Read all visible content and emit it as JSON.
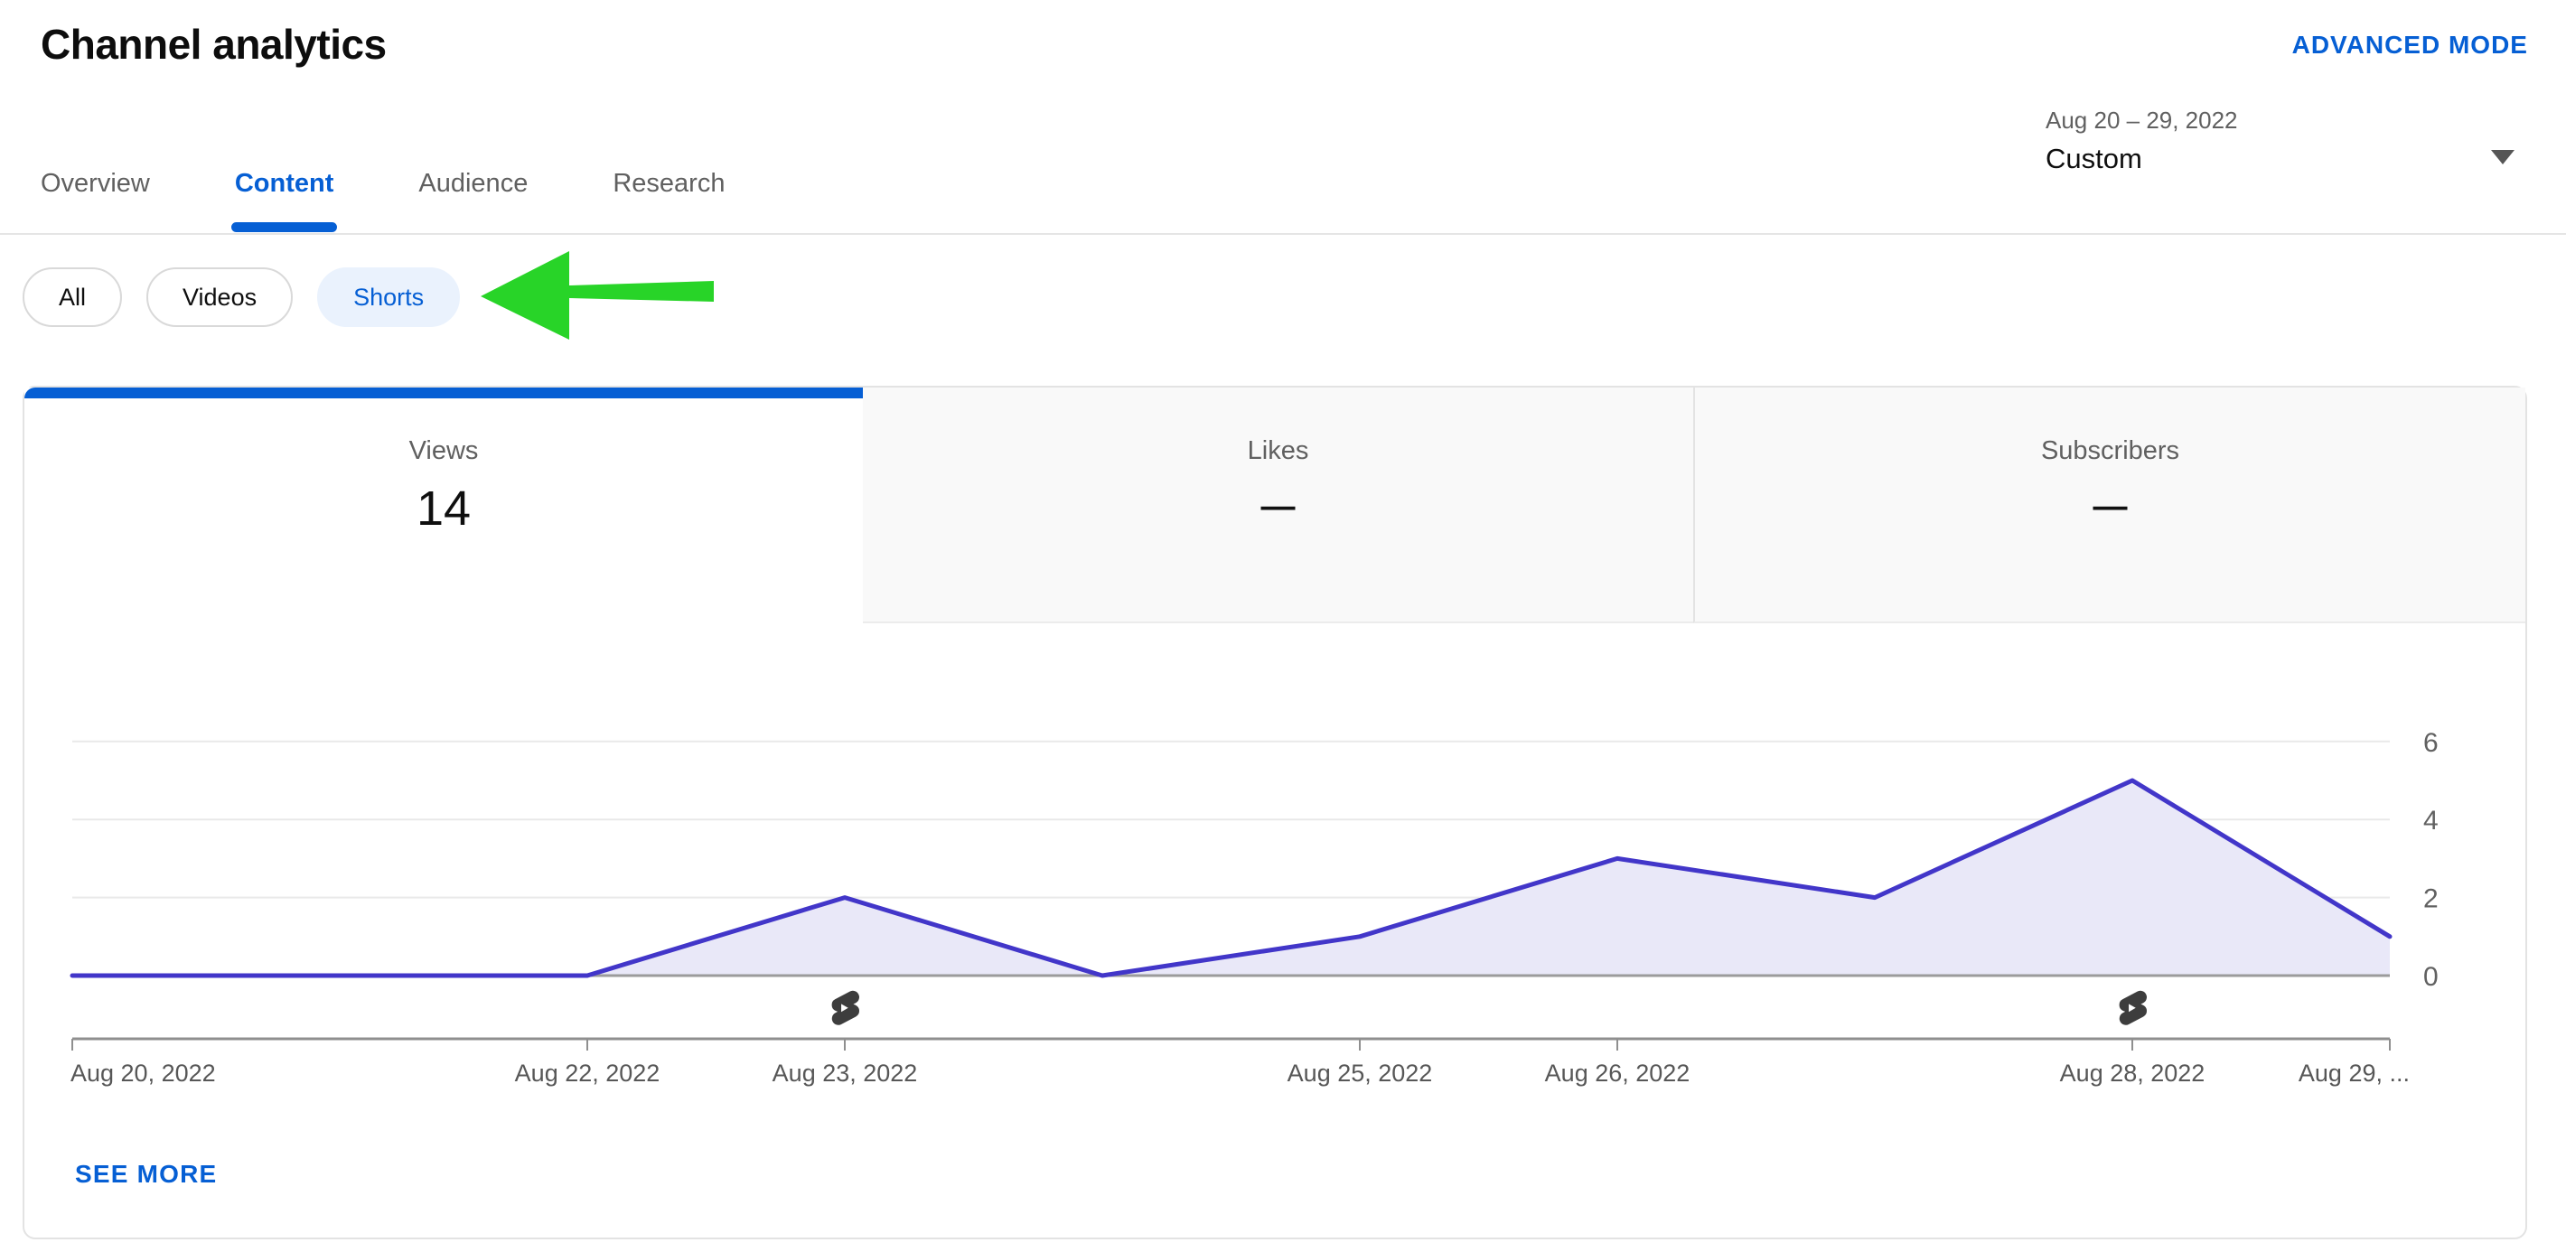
{
  "header": {
    "title": "Channel analytics",
    "advanced_mode_label": "ADVANCED MODE"
  },
  "tabs": [
    "Overview",
    "Content",
    "Audience",
    "Research"
  ],
  "active_tab": "Content",
  "date_range": {
    "range_text": "Aug 20 – 29, 2022",
    "preset": "Custom"
  },
  "filters": {
    "chips": [
      "All",
      "Videos",
      "Shorts"
    ],
    "selected": "Shorts"
  },
  "metrics": [
    {
      "label": "Views",
      "value": "14"
    },
    {
      "label": "Likes",
      "value": "—"
    },
    {
      "label": "Subscribers",
      "value": "—"
    }
  ],
  "see_more_label": "SEE MORE",
  "colors": {
    "accent": "#065fd4",
    "arrow_green": "#28d428",
    "line_color": "#4236c9",
    "fill_color": "#e9e8f8",
    "grid_color": "#e9e9e9",
    "zero_line_color": "#9b9b9b",
    "axis_color": "#8f8f8f",
    "shorts_icon_color": "#3d3d3d"
  },
  "chart_data": {
    "type": "area",
    "title": "Views over time",
    "x": [
      "Aug 20, 2022",
      "Aug 21, 2022",
      "Aug 22, 2022",
      "Aug 23, 2022",
      "Aug 24, 2022",
      "Aug 25, 2022",
      "Aug 26, 2022",
      "Aug 27, 2022",
      "Aug 28, 2022",
      "Aug 29, 2022"
    ],
    "values": [
      0,
      0,
      0,
      2,
      0,
      1,
      3,
      2,
      5,
      1
    ],
    "total": 14,
    "y_ticks": [
      0,
      2,
      4,
      6
    ],
    "ylim": [
      0,
      6.5
    ],
    "x_tick_indices": [
      0,
      2,
      3,
      5,
      6,
      8,
      9
    ],
    "x_tick_labels": [
      "Aug 20, 2022",
      "Aug 22, 2022",
      "Aug 23, 2022",
      "Aug 25, 2022",
      "Aug 26, 2022",
      "Aug 28, 2022",
      "Aug 29, ..."
    ],
    "shorts_marker_indices": [
      3,
      8
    ],
    "legend": "none",
    "grid": true
  }
}
